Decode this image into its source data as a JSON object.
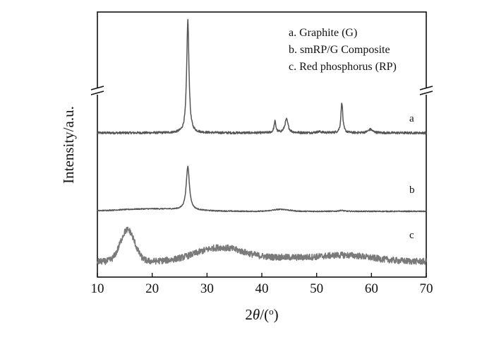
{
  "chart_data": {
    "type": "line",
    "xlabel": "2θ/(o)",
    "ylabel": "Intensity/a.u.",
    "xlim": [
      10,
      70
    ],
    "xticks": [
      "10",
      "20",
      "30",
      "40",
      "50",
      "60",
      "70"
    ],
    "yticks_shown": false,
    "y_axis_break": true,
    "grid": false,
    "legend": {
      "placement": "top-right",
      "entries": [
        "a. Graphite (G)",
        "b. smRP/G Composite",
        "c. Red phosphorus (RP)"
      ]
    },
    "series": [
      {
        "name": "a",
        "color": "#555555",
        "baseline": 0.12,
        "noise": 0.02,
        "peaks": [
          {
            "x": 26.5,
            "height": 1.0,
            "width": 0.25
          },
          {
            "x": 42.4,
            "height": 0.1,
            "width": 0.2
          },
          {
            "x": 44.5,
            "height": 0.12,
            "width": 0.35
          },
          {
            "x": 54.6,
            "height": 0.27,
            "width": 0.2
          },
          {
            "x": 59.8,
            "height": 0.03,
            "width": 0.5
          },
          {
            "x": 50.5,
            "height": 0.01,
            "width": 0.6
          }
        ]
      },
      {
        "name": "b",
        "color": "#555555",
        "baseline": 0.07,
        "noise": 0.02,
        "peaks": [
          {
            "x": 26.5,
            "height": 0.88,
            "width": 0.35
          },
          {
            "x": 20.0,
            "height": 0.05,
            "width": 6.0
          },
          {
            "x": 43.5,
            "height": 0.04,
            "width": 1.5
          },
          {
            "x": 54.5,
            "height": 0.02,
            "width": 0.5
          }
        ]
      },
      {
        "name": "c",
        "color": "#7a7a7a",
        "baseline": 0.07,
        "noise": 0.1,
        "peaks": [
          {
            "x": 15.5,
            "height": 0.5,
            "width": 1.3
          },
          {
            "x": 32.5,
            "height": 0.22,
            "width": 4.5
          },
          {
            "x": 44.0,
            "height": 0.05,
            "width": 4.0
          },
          {
            "x": 55.0,
            "height": 0.1,
            "width": 5.0
          }
        ]
      }
    ]
  }
}
